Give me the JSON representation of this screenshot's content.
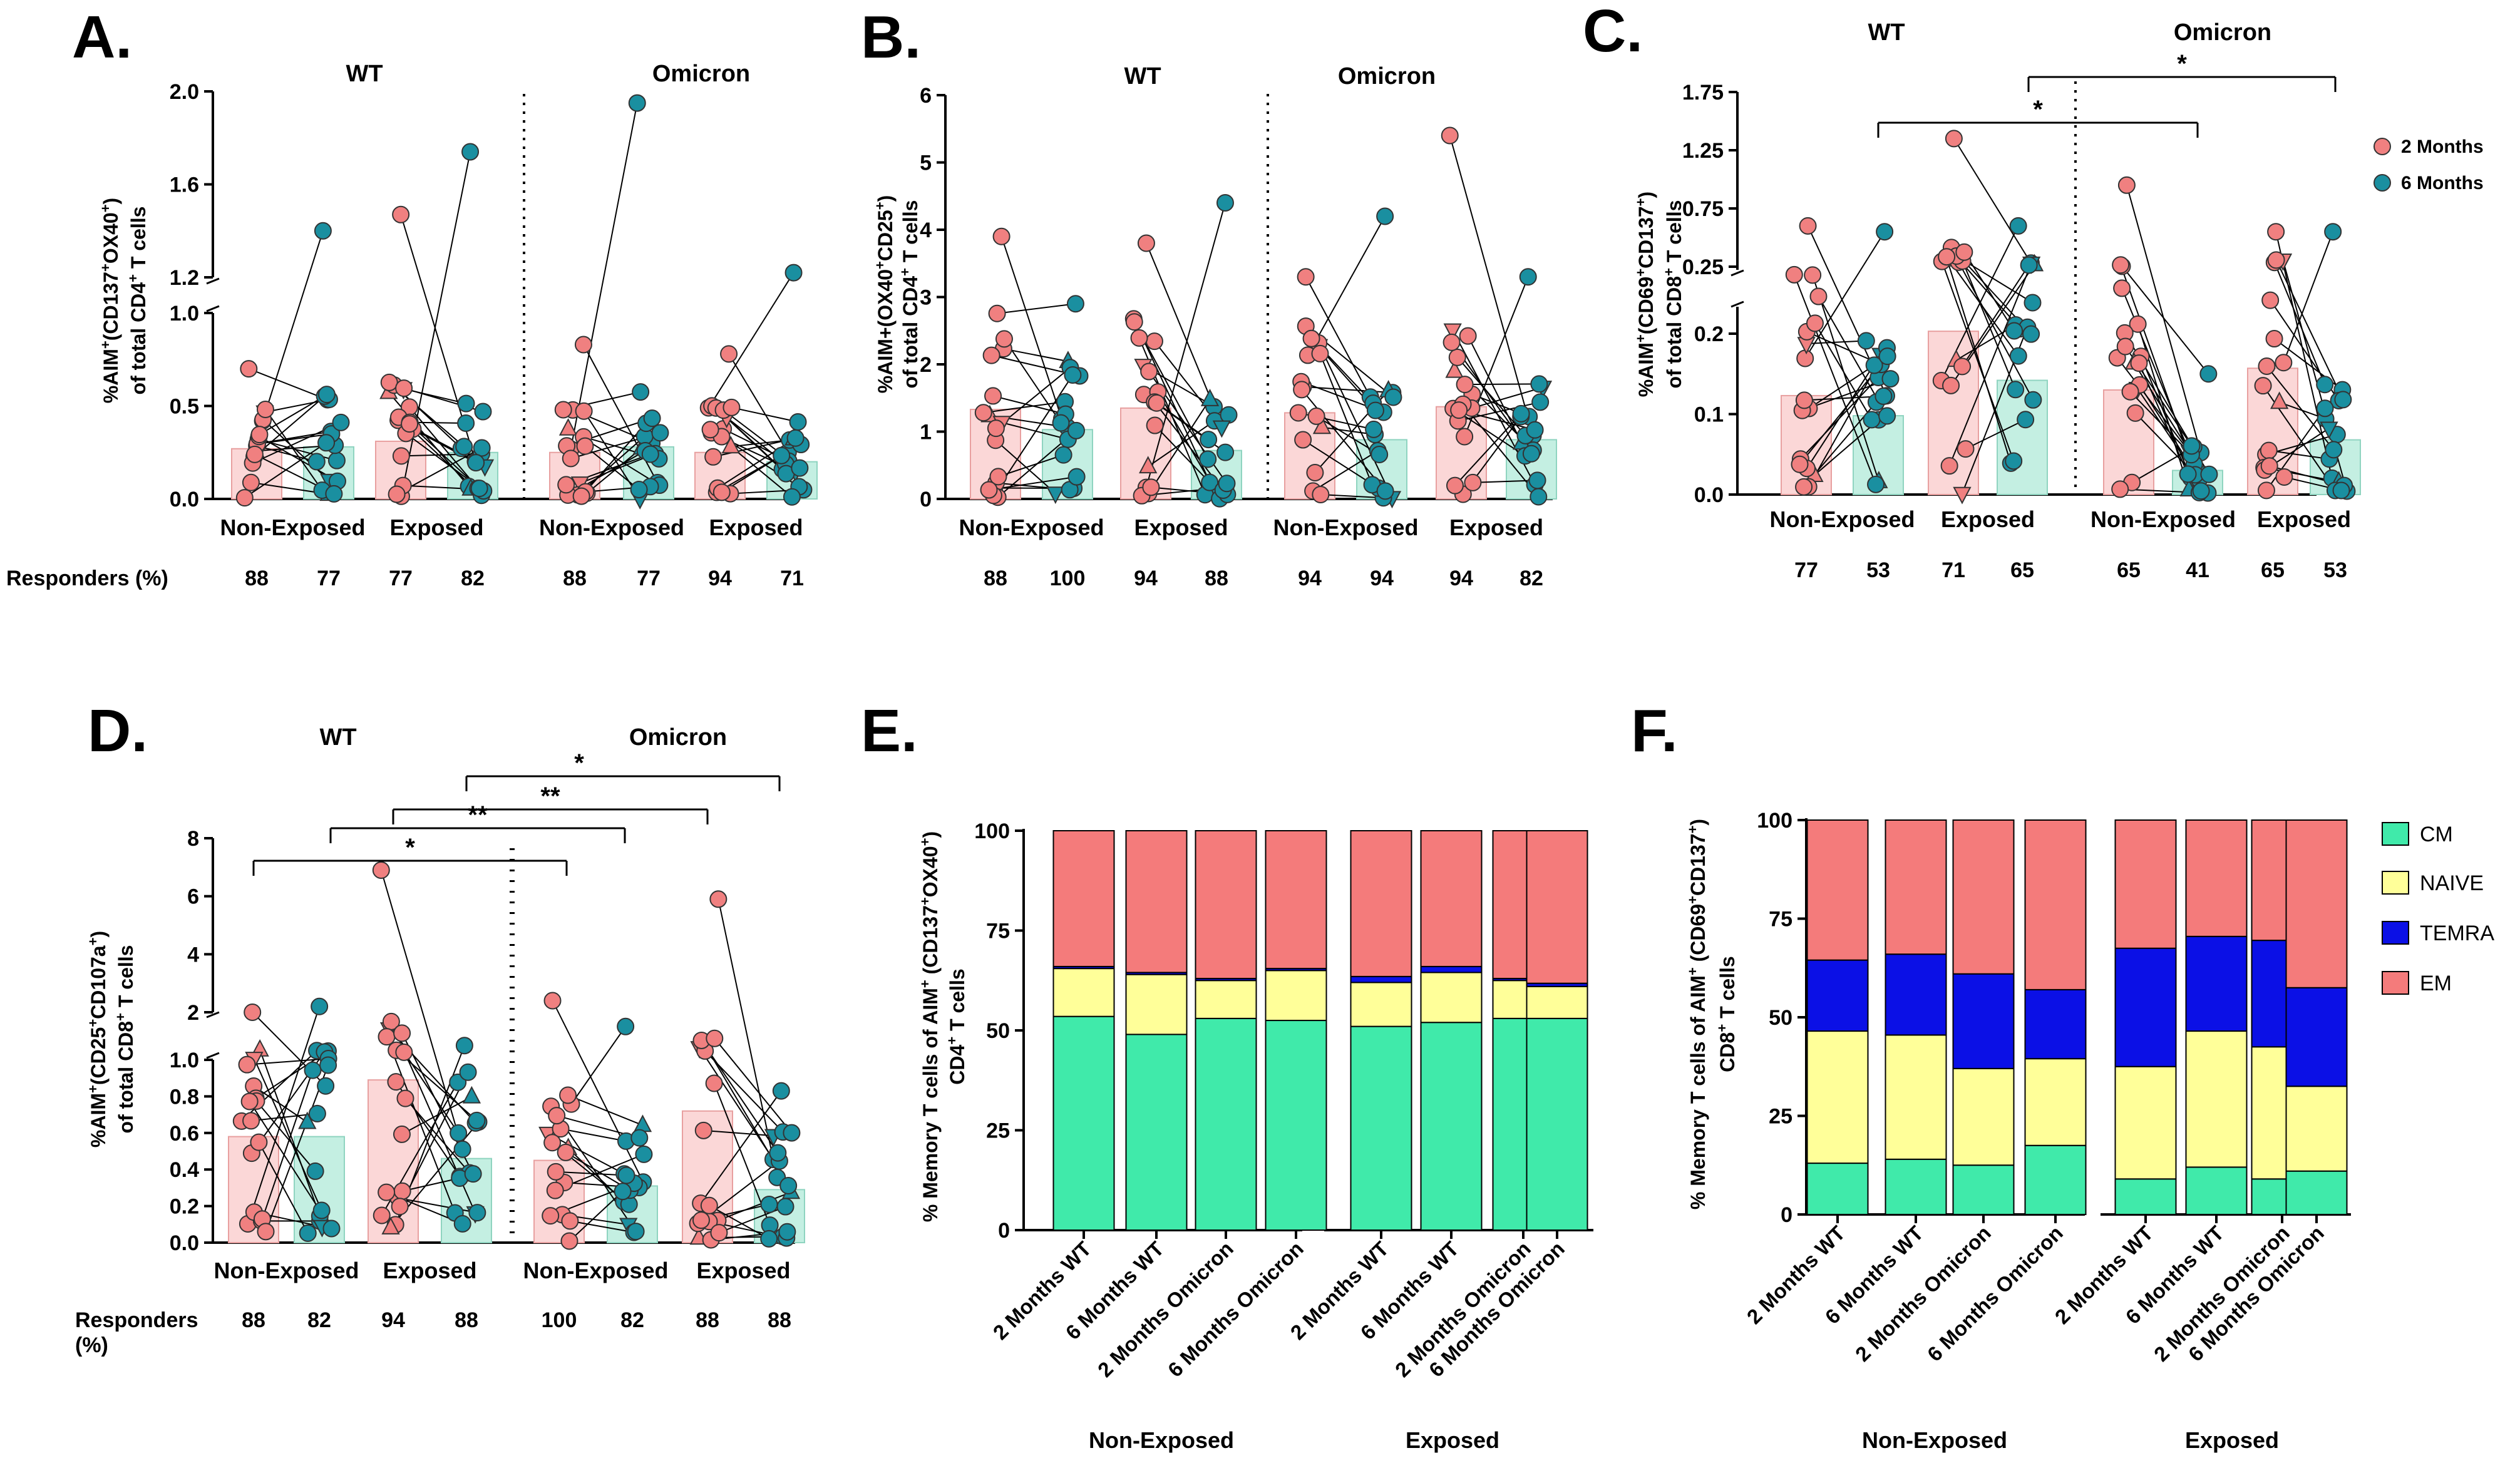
{
  "colors": {
    "month2": "#f08080",
    "month2_fill": "#fbd7d7",
    "month6": "#1a8fa0",
    "month6_fill": "#c4efe2",
    "CM": "#40eaaa",
    "NAIVE": "#ffff99",
    "TEMRA": "#0b10e6",
    "EM": "#f47b7b"
  },
  "chart_data": [
    {
      "panel": "A.",
      "type": "bar",
      "titles": [
        "WT",
        "Omicron"
      ],
      "ylabel_parts": [
        "%AIM",
        "+",
        "(CD137",
        "+",
        "OX40",
        "+",
        ")"
      ],
      "ylabel2_parts": [
        "of total CD4",
        "+",
        " T cells"
      ],
      "yticks_low": [
        "0.0",
        "0.5",
        "1.0"
      ],
      "yticks_high": [
        "1.2",
        "1.6",
        "2.0"
      ],
      "group_labels": [
        "Non-Exposed",
        "Exposed",
        "Non-Exposed",
        "Exposed"
      ],
      "responders_label": "Responders (%)",
      "responders": [
        "88",
        "77",
        "77",
        "82",
        "88",
        "77",
        "94",
        "71"
      ],
      "bar_values": [
        0.27,
        0.28,
        0.31,
        0.25,
        0.25,
        0.28,
        0.25,
        0.2
      ],
      "breaks": [
        1.0,
        1.2
      ],
      "ylim": [
        0,
        2.0
      ],
      "significance": []
    },
    {
      "panel": "B.",
      "type": "bar",
      "titles": [
        "WT",
        "Omicron"
      ],
      "ylabel_parts": [
        "%AIM+(OX40",
        "+",
        "CD25",
        "+",
        ")"
      ],
      "ylabel2_parts": [
        "of total CD4",
        "+",
        " T cells"
      ],
      "yticks": [
        "0",
        "1",
        "2",
        "3",
        "4",
        "5",
        "6"
      ],
      "group_labels": [
        "Non-Exposed",
        "Exposed",
        "Non-Exposed",
        "Exposed"
      ],
      "responders": [
        "88",
        "100",
        "94",
        "88",
        "94",
        "94",
        "94",
        "82"
      ],
      "bar_values": [
        1.33,
        1.03,
        1.35,
        0.72,
        1.28,
        0.88,
        1.37,
        0.88
      ],
      "ylim": [
        0,
        6
      ],
      "significance": []
    },
    {
      "panel": "C.",
      "type": "bar",
      "titles": [
        "WT",
        "Omicron"
      ],
      "ylabel_parts": [
        "%AIM",
        "+",
        "(CD69",
        "+",
        "CD137",
        "+",
        ")"
      ],
      "ylabel2_parts": [
        "of total CD8",
        "+",
        " T cells"
      ],
      "yticks_low": [
        "0.0",
        "0.1",
        "0.2"
      ],
      "yticks_high": [
        "0.25",
        "0.75",
        "1.25",
        "1.75"
      ],
      "group_labels": [
        "Non-Exposed",
        "Exposed",
        "Non-Exposed",
        "Exposed"
      ],
      "responders": [
        "77",
        "53",
        "71",
        "65",
        "65",
        "41",
        "65",
        "53"
      ],
      "bar_values": [
        0.123,
        0.098,
        0.203,
        0.142,
        0.13,
        0.03,
        0.157,
        0.068
      ],
      "breaks": [
        0.22,
        0.25
      ],
      "ylim": [
        0,
        1.75
      ],
      "legend": [
        "2 Months",
        "6 Months"
      ],
      "significance": [
        {
          "from": "6 Months WT Non-Exposed",
          "to": "6 Months Omicron Non-Exposed",
          "label": "*"
        },
        {
          "from": "6 Months WT Exposed",
          "to": "6 Months Omicron Exposed",
          "label": "*"
        }
      ]
    },
    {
      "panel": "D.",
      "type": "bar",
      "titles": [
        "WT",
        "Omicron"
      ],
      "ylabel_parts": [
        "%AIM",
        "+",
        "(CD25",
        "+",
        "CD107a",
        "+",
        ")"
      ],
      "ylabel2_parts": [
        "of total CD8",
        "+",
        " T cells"
      ],
      "yticks_low": [
        "0.0",
        "0.2",
        "0.4",
        "0.6",
        "0.8",
        "1.0"
      ],
      "yticks_high": [
        "2",
        "4",
        "6",
        "8"
      ],
      "group_labels": [
        "Non-Exposed",
        "Exposed",
        "Non-Exposed",
        "Exposed"
      ],
      "responders_label": "Responders",
      "responders_label2": "(%)",
      "responders": [
        "88",
        "82",
        "94",
        "88",
        "100",
        "82",
        "88",
        "88"
      ],
      "bar_values": [
        0.58,
        0.58,
        0.89,
        0.46,
        0.45,
        0.31,
        0.72,
        0.29
      ],
      "breaks": [
        1.0,
        1.2
      ],
      "ylim": [
        0,
        8
      ],
      "significance": [
        {
          "from": "2 Months WT Non-Exposed",
          "to": "2 Months Omicron Non-Exposed",
          "label": "*"
        },
        {
          "from": "6 Months WT Non-Exposed",
          "to": "6 Months Omicron Non-Exposed",
          "label": "**"
        },
        {
          "from": "2 Months WT Exposed",
          "to": "2 Months Omicron Exposed",
          "label": "**"
        },
        {
          "from": "6 Months WT Exposed",
          "to": "6 Months Omicron Exposed",
          "label": "*"
        }
      ]
    },
    {
      "panel": "E.",
      "type": "bar",
      "stacked": true,
      "ylabel_parts": [
        "% Memory T cells of AIM",
        "+",
        " (CD137",
        "+",
        "OX40",
        "+",
        ")"
      ],
      "ylabel2_parts": [
        "CD4",
        "+",
        " T cells"
      ],
      "yticks": [
        "0",
        "25",
        "50",
        "75",
        "100"
      ],
      "ylim": [
        0,
        100
      ],
      "categories": [
        "2 Months WT",
        "6 Months WT",
        "2 Months Omicron",
        "6 Months Omicron",
        "2 Months WT",
        "6 Months WT",
        "2 Months Omicron",
        "6 Months Omicron"
      ],
      "group_labels": [
        "Non-Exposed",
        "Exposed"
      ],
      "series": [
        {
          "name": "CM",
          "values": [
            53.5,
            49,
            53,
            52.5,
            51,
            52,
            53,
            53
          ]
        },
        {
          "name": "NAIVE",
          "values": [
            12,
            15,
            9.5,
            12.5,
            11,
            12.5,
            9.5,
            8
          ]
        },
        {
          "name": "TEMRA",
          "values": [
            0.5,
            0.5,
            0.5,
            0.5,
            1.5,
            1.5,
            0.5,
            0.8
          ]
        },
        {
          "name": "EM",
          "values": [
            34,
            35.5,
            37,
            34.5,
            36.5,
            34,
            37,
            38.2
          ]
        }
      ],
      "legend": [
        "CM",
        "NAIVE",
        "TEMRA",
        "EM"
      ]
    },
    {
      "panel": "F.",
      "type": "bar",
      "stacked": true,
      "ylabel_parts": [
        "% Memory T cells of AIM",
        "+",
        " (CD69",
        "+",
        "CD137",
        "+",
        ")"
      ],
      "ylabel2_parts": [
        "CD8",
        "+",
        " T cells"
      ],
      "yticks": [
        "0",
        "25",
        "50",
        "75",
        "100"
      ],
      "ylim": [
        0,
        100
      ],
      "categories": [
        "2 Months WT",
        "6 Months WT",
        "2 Months Omicron",
        "6 Months Omicron",
        "2 Months WT",
        "6 Months WT",
        "2 Months Omicron",
        "6 Months Omicron"
      ],
      "group_labels": [
        "Non-Exposed",
        "Exposed"
      ],
      "series": [
        {
          "name": "CM",
          "values": [
            13,
            14,
            12.5,
            17.5,
            9,
            12,
            9,
            11
          ]
        },
        {
          "name": "NAIVE",
          "values": [
            33.5,
            31.5,
            24.5,
            22,
            28.5,
            34.5,
            33.5,
            21.5
          ]
        },
        {
          "name": "TEMRA",
          "values": [
            18,
            20.5,
            24,
            17.5,
            30,
            24,
            27,
            25
          ]
        },
        {
          "name": "EM",
          "values": [
            35.5,
            34,
            39,
            43,
            32.5,
            29.5,
            30.5,
            42.5
          ]
        }
      ],
      "legend": [
        "CM",
        "NAIVE",
        "TEMRA",
        "EM"
      ]
    }
  ]
}
